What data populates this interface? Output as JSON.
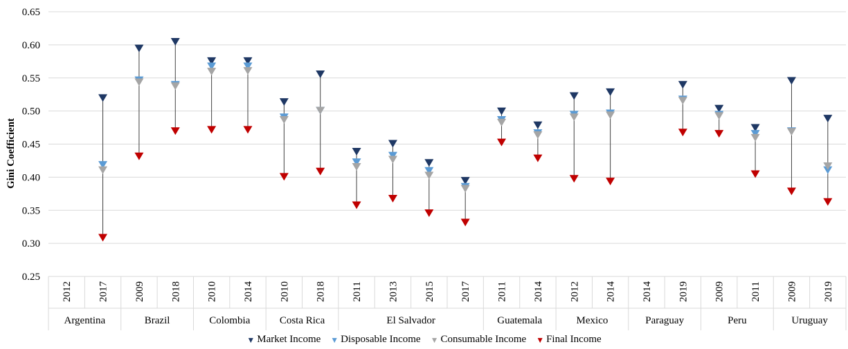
{
  "chart_data": {
    "type": "scatter",
    "ylabel": "Gini Coefficient",
    "ylim": [
      0.25,
      0.65
    ],
    "yticks": [
      "0.25",
      "0.30",
      "0.35",
      "0.40",
      "0.45",
      "0.50",
      "0.55",
      "0.60",
      "0.65"
    ],
    "grid": true,
    "legend_position": "bottom",
    "groups": [
      {
        "country": "Argentina",
        "years": [
          "2012",
          "2017"
        ]
      },
      {
        "country": "Brazil",
        "years": [
          "2009",
          "2018"
        ]
      },
      {
        "country": "Colombia",
        "years": [
          "2010",
          "2014"
        ]
      },
      {
        "country": "Costa Rica",
        "years": [
          "2010",
          "2018"
        ]
      },
      {
        "country": "El Salvador",
        "years": [
          "2011",
          "2013",
          "2015",
          "2017"
        ]
      },
      {
        "country": "Guatemala",
        "years": [
          "2011",
          "2014"
        ]
      },
      {
        "country": "Mexico",
        "years": [
          "2012",
          "2014"
        ]
      },
      {
        "country": "Paraguay",
        "years": [
          "2014",
          "2019"
        ]
      },
      {
        "country": "Peru",
        "years": [
          "2009",
          "2011"
        ]
      },
      {
        "country": "Uruguay",
        "years": [
          "2009",
          "2019"
        ]
      }
    ],
    "series": [
      {
        "name": "Market Income",
        "color": "#1f3864",
        "values": [
          null,
          0.519,
          0.594,
          0.604,
          0.575,
          0.575,
          0.513,
          0.555,
          0.438,
          0.45,
          0.421,
          0.394,
          0.499,
          0.478,
          0.522,
          0.528,
          null,
          0.539,
          0.503,
          0.474,
          0.545,
          0.488
        ]
      },
      {
        "name": "Disposable Income",
        "color": "#5b9bd5",
        "values": [
          null,
          0.418,
          0.546,
          0.539,
          0.567,
          0.567,
          0.49,
          0.5,
          0.422,
          0.432,
          0.409,
          0.385,
          0.486,
          0.466,
          0.494,
          0.496,
          null,
          0.517,
          0.494,
          0.465,
          0.469,
          0.41
        ]
      },
      {
        "name": "Consumable Income",
        "color": "#a5a5a5",
        "values": [
          null,
          0.41,
          0.543,
          0.537,
          0.559,
          0.56,
          0.486,
          0.5,
          0.415,
          0.426,
          0.402,
          0.382,
          0.482,
          0.463,
          0.49,
          0.493,
          null,
          0.515,
          0.492,
          0.459,
          0.468,
          0.416
        ]
      },
      {
        "name": "Final Income",
        "color": "#c00000",
        "values": [
          null,
          0.308,
          0.431,
          0.469,
          0.471,
          0.471,
          0.4,
          0.408,
          0.357,
          0.367,
          0.345,
          0.331,
          0.452,
          0.428,
          0.397,
          0.393,
          null,
          0.467,
          0.465,
          0.404,
          0.378,
          0.362
        ]
      }
    ]
  }
}
